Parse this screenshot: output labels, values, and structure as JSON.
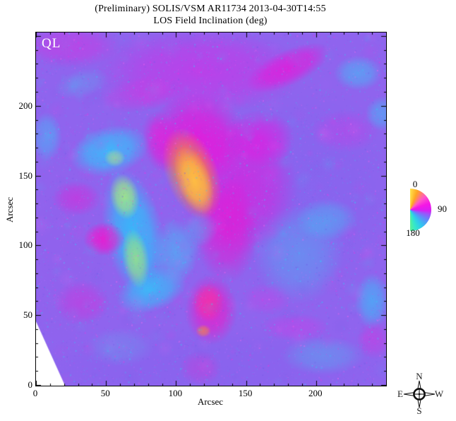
{
  "title": {
    "line1": "(Preliminary) SOLIS/VSM AR11734 2013-04-30T14:55",
    "line2": "LOS Field Inclination (deg)"
  },
  "plot": {
    "ql_label": "QL",
    "xlabel": "Arcsec",
    "ylabel": "Arcsec"
  },
  "compass": {
    "north": "N",
    "south": "S",
    "east": "E",
    "west": "W"
  },
  "chart_data": {
    "type": "heatmap",
    "title": "(Preliminary) SOLIS/VSM AR11734 2013-04-30T14:55",
    "subtitle": "LOS Field Inclination (deg)",
    "xlabel": "Arcsec",
    "ylabel": "Arcsec",
    "xlim": [
      0,
      250
    ],
    "ylim": [
      0,
      253
    ],
    "x_ticks": [
      0,
      50,
      100,
      150,
      200
    ],
    "y_ticks": [
      0,
      50,
      100,
      150,
      200
    ],
    "quality_flag": "QL",
    "grid": false,
    "colorbar": {
      "shape": "half-disk-color-wheel",
      "units": "deg",
      "labels": [
        "0",
        "90",
        "180"
      ],
      "values": [
        0,
        90,
        180
      ],
      "stops": [
        {
          "deg": 0,
          "color": "#FFE14A"
        },
        {
          "deg": 22,
          "color": "#FFA422"
        },
        {
          "deg": 48,
          "color": "#FF57C8"
        },
        {
          "deg": 72,
          "color": "#F516E6"
        },
        {
          "deg": 92,
          "color": "#D81EF2"
        },
        {
          "deg": 104,
          "color": "#9A55FA"
        },
        {
          "deg": 122,
          "color": "#5E8CFA"
        },
        {
          "deg": 145,
          "color": "#2FC8EE"
        },
        {
          "deg": 165,
          "color": "#35E8C8"
        },
        {
          "deg": 180,
          "color": "#5BF096"
        }
      ]
    },
    "background_color": "#8F64EE",
    "noise_colors": [
      "#FF2BE2",
      "#2FD0FF",
      "#AC6CFF",
      "#6F5BE8",
      "#FF66F0",
      "#27E0F5"
    ],
    "missing_region": [
      [
        0,
        0.818
      ],
      [
        0,
        1
      ],
      [
        0.083,
        1
      ]
    ],
    "features": [
      {
        "x": 0.75,
        "y": 0.45,
        "rx": 0.3,
        "ry": 0.3,
        "rot": 0,
        "color": "#8066F0",
        "a": 0.5
      },
      {
        "x": 0.5,
        "y": 0.95,
        "rx": 0.55,
        "ry": 0.12,
        "rot": 0,
        "color": "#8363EE",
        "a": 0.45
      },
      {
        "x": 0.08,
        "y": 0.6,
        "rx": 0.12,
        "ry": 0.3,
        "rot": 0,
        "color": "#9460EC",
        "a": 0.4
      },
      {
        "x": 0.47,
        "y": 0.11,
        "rx": 0.3,
        "ry": 0.12,
        "rot": 0,
        "color": "#DC25E6",
        "a": 0.55
      },
      {
        "x": 0.1,
        "y": 0.04,
        "rx": 0.14,
        "ry": 0.06,
        "rot": 0,
        "color": "#DD2BE2",
        "a": 0.5
      },
      {
        "x": 0.72,
        "y": 0.1,
        "rx": 0.13,
        "ry": 0.05,
        "rot": -25,
        "color": "#F00FD8",
        "a": 0.7
      },
      {
        "x": 0.3,
        "y": 0.175,
        "rx": 0.11,
        "ry": 0.05,
        "rot": -10,
        "color": "#DE2BE0",
        "a": 0.4
      },
      {
        "x": 0.88,
        "y": 0.28,
        "rx": 0.1,
        "ry": 0.06,
        "rot": 0,
        "color": "#D730E6",
        "a": 0.35
      },
      {
        "x": 0.92,
        "y": 0.115,
        "rx": 0.07,
        "ry": 0.05,
        "rot": 0,
        "color": "#3CC6F8",
        "a": 0.55
      },
      {
        "x": 0.99,
        "y": 0.23,
        "rx": 0.05,
        "ry": 0.05,
        "rot": 0,
        "color": "#38C6FA",
        "a": 0.5
      },
      {
        "x": 0.03,
        "y": 0.295,
        "rx": 0.045,
        "ry": 0.07,
        "rot": 0,
        "color": "#35C9FB",
        "a": 0.5
      },
      {
        "x": 0.13,
        "y": 0.145,
        "rx": 0.08,
        "ry": 0.04,
        "rot": -15,
        "color": "#4FBCF2",
        "a": 0.3
      },
      {
        "x": 0.58,
        "y": 0.44,
        "rx": 0.17,
        "ry": 0.19,
        "rot": 0,
        "color": "#E914DC",
        "a": 0.65
      },
      {
        "x": 0.46,
        "y": 0.3,
        "rx": 0.14,
        "ry": 0.13,
        "rot": 0,
        "color": "#F30DD8",
        "a": 0.8
      },
      {
        "x": 0.545,
        "y": 0.56,
        "rx": 0.09,
        "ry": 0.15,
        "rot": 0,
        "color": "#EE12D2",
        "a": 0.65
      },
      {
        "x": 0.355,
        "y": 0.31,
        "rx": 0.05,
        "ry": 0.09,
        "rot": -10,
        "color": "#EE14D6",
        "a": 0.6
      },
      {
        "x": 0.64,
        "y": 0.3,
        "rx": 0.1,
        "ry": 0.08,
        "rot": 0,
        "color": "#F010E0",
        "a": 0.6
      },
      {
        "x": 0.21,
        "y": 0.335,
        "rx": 0.115,
        "ry": 0.07,
        "rot": -15,
        "color": "#2EC9FD",
        "a": 0.8
      },
      {
        "x": 0.28,
        "y": 0.57,
        "rx": 0.085,
        "ry": 0.19,
        "rot": -12,
        "color": "#27C7FC",
        "a": 0.85
      },
      {
        "x": 0.33,
        "y": 0.73,
        "rx": 0.105,
        "ry": 0.06,
        "rot": -20,
        "color": "#2BC9FB",
        "a": 0.75
      },
      {
        "x": 0.4,
        "y": 0.62,
        "rx": 0.065,
        "ry": 0.09,
        "rot": 0,
        "color": "#38CBF8",
        "a": 0.55
      },
      {
        "x": 0.47,
        "y": 0.555,
        "rx": 0.05,
        "ry": 0.05,
        "rot": 0,
        "color": "#44C6F4",
        "a": 0.35
      },
      {
        "x": 0.253,
        "y": 0.465,
        "rx": 0.042,
        "ry": 0.065,
        "rot": -10,
        "color": "#AAEC7C",
        "a": 0.85
      },
      {
        "x": 0.285,
        "y": 0.64,
        "rx": 0.038,
        "ry": 0.085,
        "rot": -8,
        "color": "#9FE87F",
        "a": 0.8
      },
      {
        "x": 0.225,
        "y": 0.355,
        "rx": 0.03,
        "ry": 0.025,
        "rot": 0,
        "color": "#C6EE70",
        "a": 0.5
      },
      {
        "x": 0.445,
        "y": 0.4,
        "rx": 0.075,
        "ry": 0.135,
        "rot": -20,
        "color": "#FC8F2A",
        "a": 0.85
      },
      {
        "x": 0.452,
        "y": 0.42,
        "rx": 0.048,
        "ry": 0.1,
        "rot": -20,
        "color": "#FFC043",
        "a": 0.95
      },
      {
        "x": 0.195,
        "y": 0.585,
        "rx": 0.06,
        "ry": 0.048,
        "rot": 0,
        "color": "#F214CE",
        "a": 0.85
      },
      {
        "x": 0.115,
        "y": 0.47,
        "rx": 0.07,
        "ry": 0.05,
        "rot": 0,
        "color": "#E41ED8",
        "a": 0.5
      },
      {
        "x": 0.13,
        "y": 0.765,
        "rx": 0.08,
        "ry": 0.065,
        "rot": 0,
        "color": "#DE28DA",
        "a": 0.45
      },
      {
        "x": 0.5,
        "y": 0.785,
        "rx": 0.075,
        "ry": 0.1,
        "rot": 0,
        "color": "#F017C8",
        "a": 0.75
      },
      {
        "x": 0.492,
        "y": 0.765,
        "rx": 0.045,
        "ry": 0.055,
        "rot": 0,
        "color": "#FF2F9E",
        "a": 0.7
      },
      {
        "x": 0.478,
        "y": 0.845,
        "rx": 0.022,
        "ry": 0.018,
        "rot": 0,
        "color": "#FF8A33",
        "a": 0.6
      },
      {
        "x": 0.47,
        "y": 0.95,
        "rx": 0.06,
        "ry": 0.05,
        "rot": 0,
        "color": "#E22BD4",
        "a": 0.35
      },
      {
        "x": 0.75,
        "y": 0.63,
        "rx": 0.13,
        "ry": 0.14,
        "rot": 0,
        "color": "#48B9F4",
        "a": 0.45
      },
      {
        "x": 0.83,
        "y": 0.53,
        "rx": 0.09,
        "ry": 0.06,
        "rot": 0,
        "color": "#3FC2F6",
        "a": 0.5
      },
      {
        "x": 0.96,
        "y": 0.76,
        "rx": 0.05,
        "ry": 0.08,
        "rot": 0,
        "color": "#2FC9FB",
        "a": 0.6
      },
      {
        "x": 0.82,
        "y": 0.915,
        "rx": 0.12,
        "ry": 0.055,
        "rot": 0,
        "color": "#4FB5F2",
        "a": 0.45
      },
      {
        "x": 0.24,
        "y": 0.89,
        "rx": 0.1,
        "ry": 0.055,
        "rot": 0,
        "color": "#5FAEF0",
        "a": 0.3
      },
      {
        "x": 0.74,
        "y": 0.835,
        "rx": 0.1,
        "ry": 0.04,
        "rot": 0,
        "color": "#D935E8",
        "a": 0.4
      },
      {
        "x": 0.965,
        "y": 0.87,
        "rx": 0.05,
        "ry": 0.055,
        "rot": 0,
        "color": "#DE2BDE",
        "a": 0.4
      },
      {
        "x": 0.66,
        "y": 0.755,
        "rx": 0.07,
        "ry": 0.045,
        "rot": 0,
        "color": "#D33BE8",
        "a": 0.35
      }
    ]
  }
}
